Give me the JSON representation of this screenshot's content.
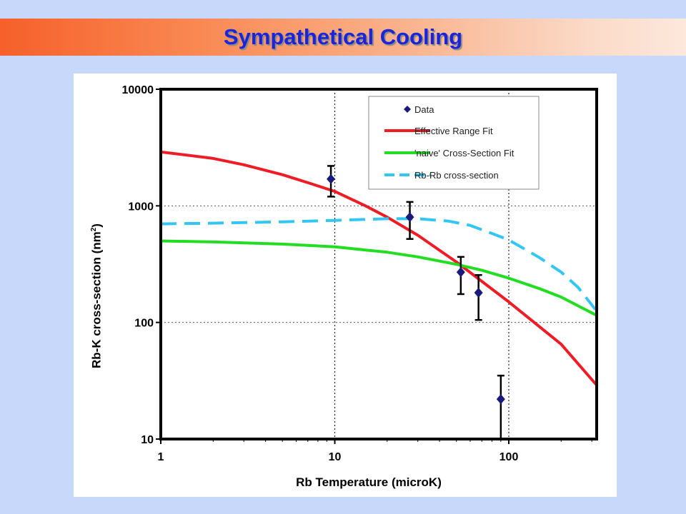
{
  "slide": {
    "title": "Sympathetical Cooling"
  },
  "colors": {
    "background": "#c8d8fa",
    "title_text": "#1a24d8",
    "effective_range_fit": "#ee1c24",
    "naive_fit": "#22dd22",
    "rb_rb": "#33c6f0",
    "data_marker": "#1a1a7a"
  },
  "chart_data": {
    "type": "scatter",
    "xlabel": "Rb Temperature (microK)",
    "ylabel": {
      "prefix": "Rb-K cross-section (nm",
      "superscript": "2",
      "suffix": ")"
    },
    "x_scale": "log",
    "y_scale": "log",
    "xlim": [
      1,
      320
    ],
    "ylim": [
      10,
      10000
    ],
    "x_ticks": [
      {
        "value": 1,
        "label": "1"
      },
      {
        "value": 10,
        "label": "10"
      },
      {
        "value": 100,
        "label": "100"
      }
    ],
    "y_ticks": [
      {
        "value": 10,
        "label": "10"
      },
      {
        "value": 100,
        "label": "100"
      },
      {
        "value": 1000,
        "label": "1000"
      },
      {
        "value": 10000,
        "label": "10000"
      }
    ],
    "grid": "dotted at decades",
    "legend_position": "top-right",
    "series": [
      {
        "name": "Data",
        "kind": "points",
        "color": "#1a1a7a",
        "points": [
          {
            "x": 9.5,
            "y": 1700,
            "err_low": 1200,
            "err_high": 2200
          },
          {
            "x": 27,
            "y": 800,
            "err_low": 520,
            "err_high": 1080
          },
          {
            "x": 53,
            "y": 270,
            "err_low": 175,
            "err_high": 365
          },
          {
            "x": 67,
            "y": 180,
            "err_low": 105,
            "err_high": 255
          },
          {
            "x": 90,
            "y": 22,
            "err_low": 10,
            "err_high": 35
          }
        ]
      },
      {
        "name": "Effective Range Fit",
        "kind": "line",
        "color": "#ee1c24",
        "dash": "solid",
        "x": [
          1,
          2,
          3,
          5,
          7,
          10,
          15,
          20,
          30,
          50,
          70,
          100,
          150,
          200,
          320
        ],
        "y": [
          2900,
          2550,
          2250,
          1850,
          1580,
          1330,
          1000,
          800,
          560,
          330,
          225,
          150,
          92,
          65,
          29
        ]
      },
      {
        "name": "'naive' Cross-Section Fit",
        "kind": "line",
        "color": "#22dd22",
        "dash": "solid",
        "x": [
          1,
          2,
          5,
          10,
          20,
          30,
          50,
          70,
          100,
          150,
          200,
          320
        ],
        "y": [
          500,
          490,
          470,
          445,
          400,
          365,
          315,
          280,
          240,
          195,
          165,
          115
        ]
      },
      {
        "name": "Rb-Rb cross-section",
        "kind": "line",
        "color": "#33c6f0",
        "dash": "dashed",
        "x": [
          1,
          2,
          5,
          10,
          20,
          30,
          45,
          60,
          80,
          100,
          150,
          200,
          250,
          320
        ],
        "y": [
          700,
          710,
          730,
          750,
          775,
          775,
          740,
          680,
          580,
          510,
          360,
          270,
          200,
          125
        ]
      }
    ]
  }
}
